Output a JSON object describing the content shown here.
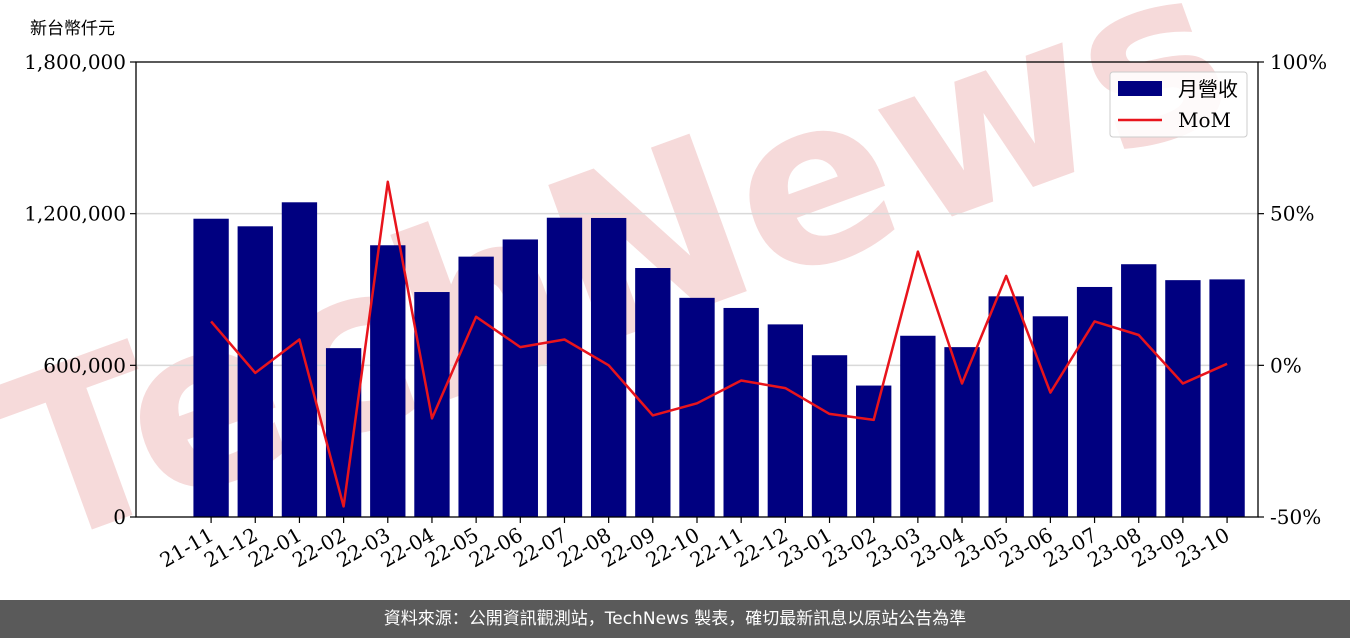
{
  "unit_label": "新台幣仟元",
  "footer_text": "資料來源：公開資訊觀測站，TechNews 製表，確切最新訊息以原站公告為準",
  "watermark": "TechNews",
  "colors": {
    "bar": "#000080",
    "line": "#e8141c",
    "grid": "#d9d9d9",
    "watermark": "#f6dada"
  },
  "chart_data": {
    "type": "bar+line",
    "categories": [
      "21-11",
      "21-12",
      "22-01",
      "22-02",
      "22-03",
      "22-04",
      "22-05",
      "22-06",
      "22-07",
      "22-08",
      "22-09",
      "22-10",
      "22-11",
      "22-12",
      "23-01",
      "23-02",
      "23-03",
      "23-04",
      "23-05",
      "23-06",
      "23-07",
      "23-08",
      "23-09",
      "23-10"
    ],
    "series": [
      {
        "name": "月營收",
        "type": "bar",
        "axis": "left",
        "values": [
          1180000,
          1150000,
          1245000,
          668000,
          1075000,
          890000,
          1030000,
          1098000,
          1184000,
          1183000,
          985000,
          867000,
          827000,
          762000,
          640000,
          520000,
          717000,
          672000,
          873000,
          794000,
          910000,
          1000000,
          937000,
          940000
        ]
      },
      {
        "name": "MoM",
        "type": "line",
        "axis": "right",
        "values": [
          14.5,
          -2.5,
          8.5,
          -46.5,
          60.5,
          -17.5,
          16,
          6,
          8.5,
          0,
          -16.5,
          -12.5,
          -5,
          -7.5,
          -16,
          -18,
          37.5,
          -6,
          29.5,
          -9,
          14.5,
          10,
          -6,
          0.5
        ]
      }
    ],
    "y_left": {
      "ticks": [
        0,
        600000,
        1200000,
        1800000
      ],
      "tick_labels": [
        "0",
        "600,000",
        "1,200,000",
        "1,800,000"
      ],
      "ylim": [
        0,
        1800000
      ]
    },
    "y_right": {
      "ticks": [
        -50,
        0,
        50,
        100
      ],
      "tick_labels": [
        "-50%",
        "0%",
        "50%",
        "100%"
      ],
      "ylim": [
        -50,
        100
      ]
    },
    "grid": "horizontal",
    "legend": {
      "placement": "top-right",
      "entries": [
        "月營收",
        "MoM"
      ]
    }
  }
}
